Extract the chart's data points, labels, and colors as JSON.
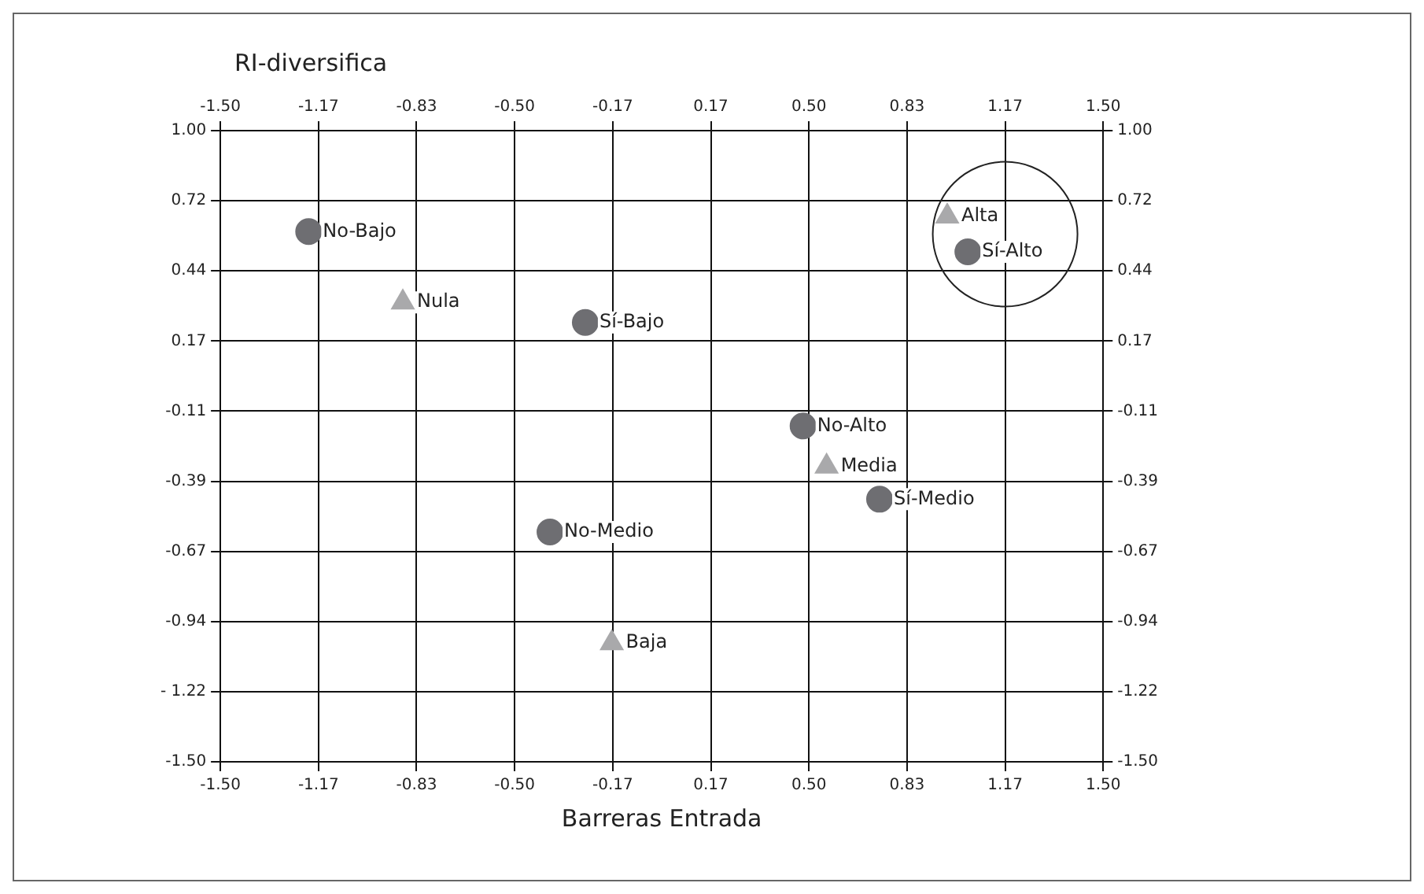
{
  "chart_data": {
    "type": "scatter",
    "xlabel": "Barreras Entrada",
    "ylabel": "RI-diversifica",
    "xlim": [
      -1.5,
      1.5
    ],
    "xticks": [
      {
        "value": -1.5,
        "label": "-1.50"
      },
      {
        "value": -1.1667,
        "label": "-1.17"
      },
      {
        "value": -0.8333,
        "label": "-0.83"
      },
      {
        "value": -0.5,
        "label": "-0.50"
      },
      {
        "value": -0.1667,
        "label": "-0.17"
      },
      {
        "value": 0.1667,
        "label": "0.17"
      },
      {
        "value": 0.5,
        "label": "0.50"
      },
      {
        "value": 0.8333,
        "label": "0.83"
      },
      {
        "value": 1.1667,
        "label": "1.17"
      },
      {
        "value": 1.5,
        "label": "1.50"
      }
    ],
    "x2lim": [
      -1.5,
      1.5
    ],
    "x2ticks": [
      {
        "value": -1.5,
        "label": "-1.50"
      },
      {
        "value": -1.1667,
        "label": "-1.17"
      },
      {
        "value": -0.8333,
        "label": "-0.83"
      },
      {
        "value": -0.5,
        "label": "-0.50"
      },
      {
        "value": -0.1667,
        "label": "-0.17"
      },
      {
        "value": 0.1667,
        "label": "0.17"
      },
      {
        "value": 0.5,
        "label": "0.50"
      },
      {
        "value": 0.8333,
        "label": "0.83"
      },
      {
        "value": 1.1667,
        "label": "1.17"
      },
      {
        "value": 1.5,
        "label": "1.50"
      }
    ],
    "ylim": [
      -1.5,
      1
    ],
    "yticks": [
      {
        "value": 1,
        "label": "1.00"
      },
      {
        "value": 0.7222,
        "label": "0.72"
      },
      {
        "value": 0.4444,
        "label": "0.44"
      },
      {
        "value": 0.1667,
        "label": "0.17"
      },
      {
        "value": -0.1111,
        "label": "-0.11"
      },
      {
        "value": -0.3889,
        "label": "-0.39"
      },
      {
        "value": -0.6667,
        "label": "-0.67"
      },
      {
        "value": -0.9444,
        "label": "-0.94"
      },
      {
        "value": -1.2222,
        "label": "- 1.22"
      },
      {
        "value": -1.5,
        "label": "-1.50"
      }
    ],
    "y2lim": [
      -1.5,
      1
    ],
    "y2ticks": [
      {
        "value": 1,
        "label": "1.00"
      },
      {
        "value": 0.7222,
        "label": "0.72"
      },
      {
        "value": 0.4444,
        "label": "0.44"
      },
      {
        "value": 0.1667,
        "label": "0.17"
      },
      {
        "value": -0.1111,
        "label": "-0.11"
      },
      {
        "value": -0.3889,
        "label": "-0.39"
      },
      {
        "value": -0.6667,
        "label": "-0.67"
      },
      {
        "value": -0.9444,
        "label": "-0.94"
      },
      {
        "value": -1.2222,
        "label": "-1.22"
      },
      {
        "value": -1.5,
        "label": "-1.50"
      }
    ],
    "grid": true,
    "legend": false,
    "series": [
      {
        "color": "#6e6e72",
        "marker": "circle",
        "x": [
          -1.2,
          -0.26,
          1.04,
          0.48,
          0.74,
          -0.38
        ],
        "values": [
          0.6,
          0.24,
          0.52,
          -0.17,
          -0.46,
          -0.59
        ]
      },
      {
        "color": "#a9a9ab",
        "marker": "triangle",
        "x": [
          -0.88,
          0.97,
          0.56,
          -0.17
        ],
        "values": [
          0.32,
          0.66,
          -0.33,
          -1.03
        ]
      }
    ],
    "annotations": [
      {
        "text": "No-Bajo",
        "x": -1.2,
        "y": 0.6
      },
      {
        "text": "Sí-Bajo",
        "x": -0.26,
        "y": 0.24
      },
      {
        "text": "Sí-Alto",
        "x": 1.04,
        "y": 0.52
      },
      {
        "text": "No-Alto",
        "x": 0.48,
        "y": -0.17
      },
      {
        "text": "Sí-Medio",
        "x": 0.74,
        "y": -0.46
      },
      {
        "text": "No-Medio",
        "x": -0.38,
        "y": -0.59
      },
      {
        "text": "Nula",
        "x": -0.88,
        "y": 0.32
      },
      {
        "text": "Alta",
        "x": 0.97,
        "y": 0.66
      },
      {
        "text": "Media",
        "x": 0.56,
        "y": -0.33
      },
      {
        "text": "Baja",
        "x": -0.17,
        "y": -1.03
      }
    ]
  }
}
